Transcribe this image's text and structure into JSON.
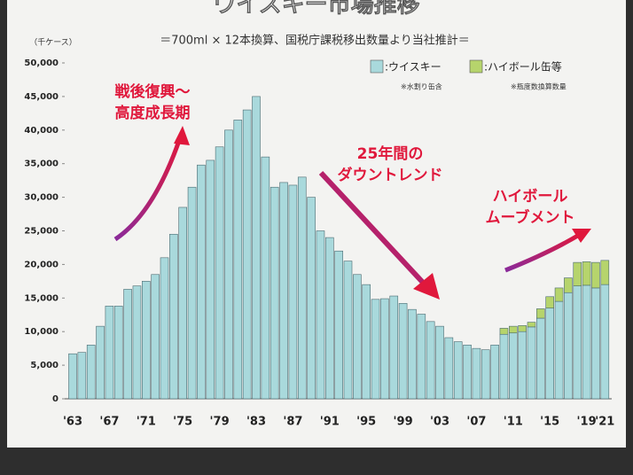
{
  "chart_data": {
    "type": "stacked_bar",
    "title": "ウイスキー市場推移",
    "subtitle": "＝700ml × 12本換算、国税庁課税移出数量より当社推計＝",
    "y_label": "（千ケース）",
    "categories": [
      "'63",
      null,
      null,
      null,
      "'67",
      null,
      null,
      null,
      "'71",
      null,
      null,
      null,
      "'75",
      null,
      null,
      null,
      "'79",
      null,
      null,
      null,
      "'83",
      null,
      null,
      null,
      "'87",
      null,
      null,
      null,
      "'91",
      null,
      null,
      null,
      "'95",
      null,
      null,
      null,
      "'99",
      null,
      null,
      null,
      "'03",
      null,
      null,
      null,
      "'07",
      null,
      null,
      null,
      "'11",
      null,
      null,
      null,
      "'15",
      null,
      null,
      null,
      "'19",
      null,
      "'21"
    ],
    "series": [
      {
        "name": ":ウイスキー",
        "note": "※水割り缶含",
        "color": "#a9d9dc",
        "values": [
          6700,
          6900,
          8000,
          10800,
          13800,
          13800,
          16300,
          16800,
          17500,
          18500,
          21000,
          24500,
          28500,
          31500,
          34800,
          35500,
          37500,
          40000,
          41500,
          43000,
          45000,
          36000,
          31500,
          32200,
          31800,
          33000,
          30000,
          25000,
          24000,
          22000,
          20500,
          18500,
          17000,
          14800,
          14900,
          15300,
          14200,
          13300,
          12600,
          11500,
          10800,
          9100,
          8500,
          8000,
          7500,
          7300,
          8000,
          9600,
          9800,
          10000,
          10700,
          12000,
          13500,
          14500,
          15800,
          16800,
          16900,
          16500,
          17000
        ]
      },
      {
        "name": ":ハイボール缶等",
        "note": "※瓶度数換算数量",
        "color": "#b6d46c",
        "values": [
          null,
          null,
          null,
          null,
          null,
          null,
          null,
          null,
          null,
          null,
          null,
          null,
          null,
          null,
          null,
          null,
          null,
          null,
          null,
          null,
          null,
          null,
          null,
          null,
          null,
          null,
          null,
          null,
          null,
          null,
          null,
          null,
          null,
          null,
          null,
          null,
          null,
          null,
          null,
          null,
          null,
          null,
          null,
          null,
          null,
          null,
          null,
          900,
          1000,
          900,
          700,
          1400,
          1700,
          2000,
          2200,
          3500,
          3500,
          3800,
          3600
        ]
      }
    ],
    "ylim": [
      0,
      50000
    ],
    "yticks": [
      0,
      {
        "value": 5000,
        "label": "5,000"
      },
      {
        "value": 10000,
        "label": "10,000"
      },
      {
        "value": 15000,
        "label": "15,000"
      },
      {
        "value": 20000,
        "label": "20,000"
      },
      {
        "value": 25000,
        "label": "25,000"
      },
      {
        "value": 30000,
        "label": "30,000"
      },
      {
        "value": 35000,
        "label": "35,000"
      },
      {
        "value": 40000,
        "label": "40,000"
      },
      {
        "value": 45000,
        "label": "45,000"
      },
      {
        "value": 50000,
        "label": "50,000"
      }
    ],
    "annotations": [
      [
        "戦後復興～",
        "高度成長期"
      ],
      [
        "25年間の",
        "ダウントレンド"
      ],
      [
        "ハイボール",
        "ムーブメント"
      ]
    ]
  }
}
